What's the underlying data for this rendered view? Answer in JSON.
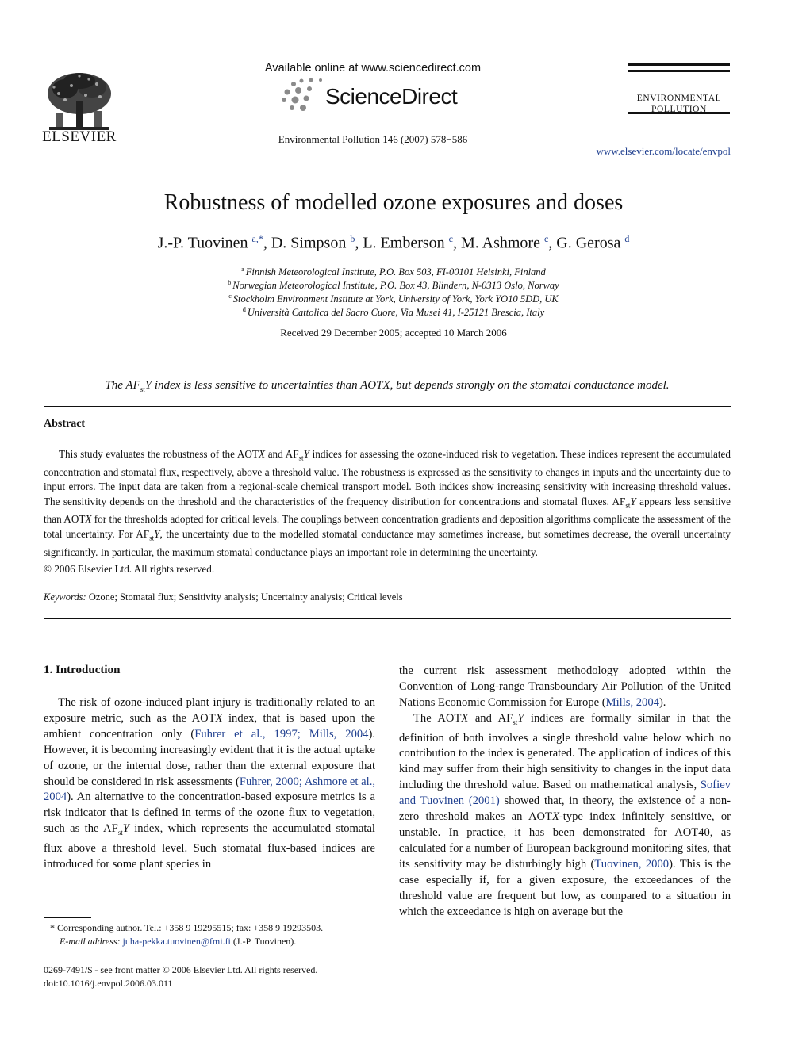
{
  "header": {
    "publisher_word": "ELSEVIER",
    "available_online": "Available online at www.sciencedirect.com",
    "sciencedirect": "ScienceDirect",
    "citation": "Environmental Pollution 146 (2007) 578−586",
    "journal_name_line1": "ENVIRONMENTAL",
    "journal_name_line2": "POLLUTION",
    "journal_url": "www.elsevier.com/locate/envpol"
  },
  "article": {
    "title": "Robustness of modelled ozone exposures and doses",
    "authors": [
      {
        "name": "J.-P. Tuovinen",
        "sup": "a,*",
        "sep": ", "
      },
      {
        "name": "D. Simpson",
        "sup": "b",
        "sep": ", "
      },
      {
        "name": "L. Emberson",
        "sup": "c",
        "sep": ", "
      },
      {
        "name": "M. Ashmore",
        "sup": "c",
        "sep": ", "
      },
      {
        "name": "G. Gerosa",
        "sup": "d",
        "sep": ""
      }
    ],
    "affiliations": [
      {
        "sup": "a",
        "text": "Finnish Meteorological Institute, P.O. Box 503, FI-00101 Helsinki, Finland"
      },
      {
        "sup": "b",
        "text": "Norwegian Meteorological Institute, P.O. Box 43, Blindern, N-0313 Oslo, Norway"
      },
      {
        "sup": "c",
        "text": "Stockholm Environment Institute at York, University of York, York YO10 5DD, UK"
      },
      {
        "sup": "d",
        "text": "Università Cattolica del Sacro Cuore, Via Musei 41, I-25121 Brescia, Italy"
      }
    ],
    "received": "Received 29 December 2005; accepted 10 March 2006",
    "highlight_pre": "The AF",
    "highlight_sub": "st",
    "highlight_post": "Y index is less sensitive to uncertainties than AOTX, but depends strongly on the stomatal conductance model."
  },
  "abstract": {
    "heading": "Abstract",
    "copyright": "© 2006 Elsevier Ltd. All rights reserved.",
    "keywords_label": "Keywords:",
    "keywords": " Ozone; Stomatal flux; Sensitivity analysis; Uncertainty analysis; Critical levels"
  },
  "body": {
    "section_heading": "1. Introduction"
  },
  "footnotes": {
    "corresponding": "* Corresponding author. Tel.: +358 9 19295515; fax: +358 9 19293503.",
    "email_label": "E-mail address:",
    "email": "juha-pekka.tuovinen@fmi.fi",
    "email_suffix": " (J.-P. Tuovinen).",
    "issn": "0269-7491/$ - see front matter © 2006 Elsevier Ltd. All rights reserved.",
    "doi": "doi:10.1016/j.envpol.2006.03.011"
  },
  "colors": {
    "link": "#1f3f8f",
    "text": "#111111"
  }
}
